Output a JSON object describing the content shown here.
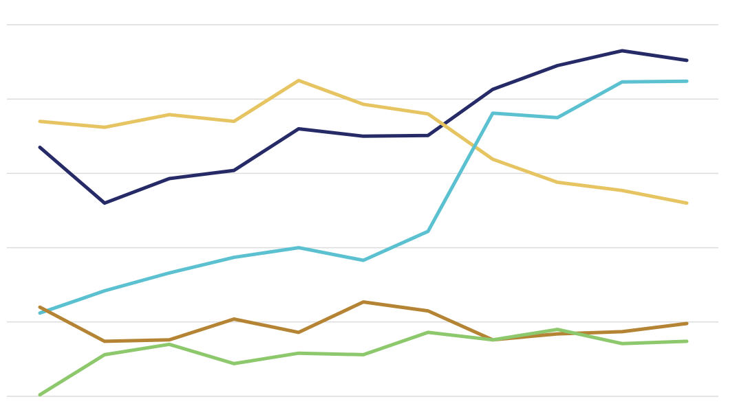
{
  "chart_data": {
    "type": "line",
    "x": [
      1,
      2,
      3,
      4,
      5,
      6,
      7,
      8,
      9,
      10,
      11
    ],
    "ylim": [
      0,
      5
    ],
    "grid": true,
    "yticks": [
      0,
      1,
      2,
      3,
      4,
      5
    ],
    "series": [
      {
        "key": "navy",
        "color": "#262b68",
        "values": [
          3.35,
          2.6,
          2.93,
          3.04,
          3.6,
          3.5,
          3.51,
          4.13,
          4.45,
          4.65,
          4.52
        ]
      },
      {
        "key": "gold",
        "color": "#e6c462",
        "values": [
          3.7,
          3.62,
          3.79,
          3.7,
          4.25,
          3.93,
          3.8,
          3.19,
          2.88,
          2.77,
          2.6
        ]
      },
      {
        "key": "teal",
        "color": "#5bc1d1",
        "values": [
          1.12,
          1.42,
          1.66,
          1.87,
          2.0,
          1.83,
          2.22,
          3.81,
          3.75,
          4.23,
          4.24
        ]
      },
      {
        "key": "brown",
        "color": "#b48434",
        "values": [
          1.2,
          0.74,
          0.76,
          1.04,
          0.86,
          1.27,
          1.15,
          0.76,
          0.84,
          0.87,
          0.98
        ]
      },
      {
        "key": "green",
        "color": "#8dc86d",
        "values": [
          0.02,
          0.56,
          0.7,
          0.44,
          0.58,
          0.56,
          0.86,
          0.76,
          0.9,
          0.71,
          0.74
        ]
      }
    ]
  }
}
